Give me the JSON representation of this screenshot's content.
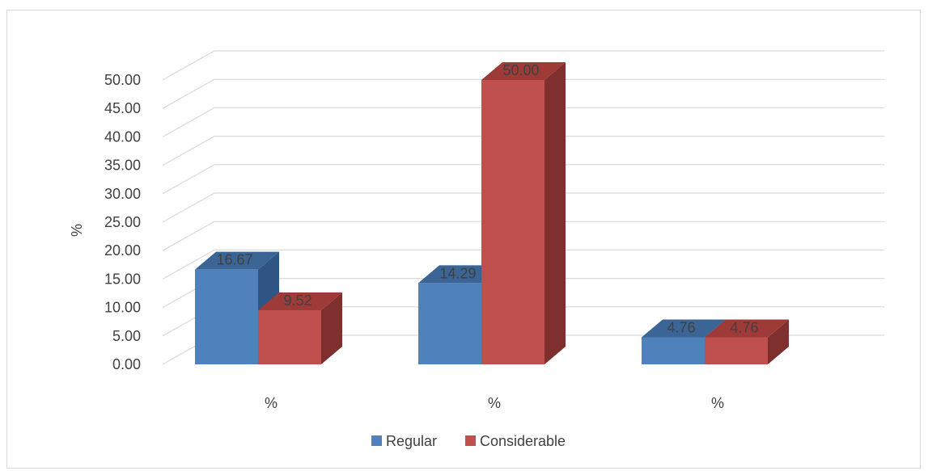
{
  "chart_data": {
    "type": "bar",
    "categories": [
      "%",
      "%",
      "%"
    ],
    "series": [
      {
        "name": "Regular",
        "values": [
          16.67,
          14.29,
          4.76
        ],
        "color": "#4f81bd",
        "top_color": "#3a6595",
        "side_color": "#2f5584"
      },
      {
        "name": "Considerable",
        "values": [
          9.52,
          50.0,
          4.76
        ],
        "color": "#c0504d",
        "top_color": "#9e3b38",
        "side_color": "#7f2f2d"
      }
    ],
    "data_labels": [
      [
        "16.67",
        "14.29",
        "4.76"
      ],
      [
        "9.52",
        "50.00",
        "4.76"
      ]
    ],
    "title": "",
    "xlabel": "",
    "ylabel": "%",
    "ylim": [
      0,
      50
    ],
    "y_ticks": [
      "0.00",
      "5.00",
      "10.00",
      "15.00",
      "20.00",
      "25.00",
      "30.00",
      "35.00",
      "40.00",
      "45.00",
      "50.00"
    ],
    "grid": true,
    "legend_position": "bottom",
    "style": "3d-clustered-column"
  }
}
